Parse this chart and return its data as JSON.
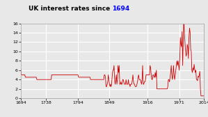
{
  "title": "UK interest rates since ",
  "title_suffix": "1694",
  "title_suffix_color": "#0000ff",
  "title_main_color": "#000000",
  "xlim": [
    1694,
    2014
  ],
  "ylim": [
    0,
    16
  ],
  "yticks": [
    0,
    2,
    4,
    6,
    8,
    10,
    12,
    14,
    16
  ],
  "xticks": [
    1694,
    1738,
    1794,
    1849,
    1916,
    1971,
    2014
  ],
  "line_color": "#cc0000",
  "background_color": "#e8e8e8",
  "grid_color": "#ffffff",
  "rates": [
    [
      1694,
      6.0
    ],
    [
      1695,
      5.0
    ],
    [
      1696,
      5.0
    ],
    [
      1697,
      5.0
    ],
    [
      1698,
      5.0
    ],
    [
      1699,
      5.0
    ],
    [
      1700,
      5.0
    ],
    [
      1701,
      5.0
    ],
    [
      1702,
      4.5
    ],
    [
      1703,
      4.5
    ],
    [
      1704,
      4.5
    ],
    [
      1705,
      4.5
    ],
    [
      1706,
      4.5
    ],
    [
      1707,
      4.5
    ],
    [
      1708,
      4.5
    ],
    [
      1709,
      4.5
    ],
    [
      1710,
      4.5
    ],
    [
      1711,
      4.5
    ],
    [
      1712,
      4.5
    ],
    [
      1713,
      4.5
    ],
    [
      1714,
      4.5
    ],
    [
      1715,
      4.5
    ],
    [
      1716,
      4.5
    ],
    [
      1717,
      4.5
    ],
    [
      1718,
      4.5
    ],
    [
      1719,
      4.5
    ],
    [
      1720,
      4.5
    ],
    [
      1721,
      4.5
    ],
    [
      1722,
      4.0
    ],
    [
      1723,
      4.0
    ],
    [
      1724,
      4.0
    ],
    [
      1725,
      4.0
    ],
    [
      1726,
      4.0
    ],
    [
      1727,
      4.0
    ],
    [
      1728,
      4.0
    ],
    [
      1729,
      4.0
    ],
    [
      1730,
      4.0
    ],
    [
      1731,
      4.0
    ],
    [
      1732,
      4.0
    ],
    [
      1733,
      4.0
    ],
    [
      1734,
      4.0
    ],
    [
      1735,
      4.0
    ],
    [
      1736,
      4.0
    ],
    [
      1737,
      4.0
    ],
    [
      1738,
      4.0
    ],
    [
      1739,
      4.0
    ],
    [
      1740,
      4.0
    ],
    [
      1741,
      4.0
    ],
    [
      1742,
      4.0
    ],
    [
      1743,
      4.0
    ],
    [
      1744,
      4.0
    ],
    [
      1745,
      4.0
    ],
    [
      1746,
      4.0
    ],
    [
      1747,
      4.0
    ],
    [
      1748,
      5.0
    ],
    [
      1749,
      5.0
    ],
    [
      1750,
      5.0
    ],
    [
      1751,
      5.0
    ],
    [
      1752,
      5.0
    ],
    [
      1753,
      5.0
    ],
    [
      1754,
      5.0
    ],
    [
      1755,
      5.0
    ],
    [
      1756,
      5.0
    ],
    [
      1757,
      5.0
    ],
    [
      1758,
      5.0
    ],
    [
      1759,
      5.0
    ],
    [
      1760,
      5.0
    ],
    [
      1761,
      5.0
    ],
    [
      1762,
      5.0
    ],
    [
      1763,
      5.0
    ],
    [
      1764,
      5.0
    ],
    [
      1765,
      5.0
    ],
    [
      1766,
      5.0
    ],
    [
      1767,
      5.0
    ],
    [
      1768,
      5.0
    ],
    [
      1769,
      5.0
    ],
    [
      1770,
      5.0
    ],
    [
      1771,
      5.0
    ],
    [
      1772,
      5.0
    ],
    [
      1773,
      5.0
    ],
    [
      1774,
      5.0
    ],
    [
      1775,
      5.0
    ],
    [
      1776,
      5.0
    ],
    [
      1777,
      5.0
    ],
    [
      1778,
      5.0
    ],
    [
      1779,
      5.0
    ],
    [
      1780,
      5.0
    ],
    [
      1781,
      5.0
    ],
    [
      1782,
      5.0
    ],
    [
      1783,
      5.0
    ],
    [
      1784,
      5.0
    ],
    [
      1785,
      5.0
    ],
    [
      1786,
      5.0
    ],
    [
      1787,
      5.0
    ],
    [
      1788,
      5.0
    ],
    [
      1789,
      5.0
    ],
    [
      1790,
      5.0
    ],
    [
      1791,
      5.0
    ],
    [
      1792,
      5.0
    ],
    [
      1793,
      5.0
    ],
    [
      1794,
      5.0
    ],
    [
      1795,
      4.5
    ],
    [
      1796,
      4.5
    ],
    [
      1797,
      4.5
    ],
    [
      1798,
      4.5
    ],
    [
      1799,
      4.5
    ],
    [
      1800,
      4.5
    ],
    [
      1801,
      4.5
    ],
    [
      1802,
      4.5
    ],
    [
      1803,
      4.5
    ],
    [
      1804,
      4.5
    ],
    [
      1805,
      4.5
    ],
    [
      1806,
      4.5
    ],
    [
      1807,
      4.5
    ],
    [
      1808,
      4.5
    ],
    [
      1809,
      4.5
    ],
    [
      1810,
      4.5
    ],
    [
      1811,
      4.5
    ],
    [
      1812,
      4.5
    ],
    [
      1813,
      4.5
    ],
    [
      1814,
      4.5
    ],
    [
      1815,
      4.5
    ],
    [
      1816,
      4.0
    ],
    [
      1817,
      4.0
    ],
    [
      1818,
      4.0
    ],
    [
      1819,
      4.0
    ],
    [
      1820,
      4.0
    ],
    [
      1821,
      4.0
    ],
    [
      1822,
      4.0
    ],
    [
      1823,
      4.0
    ],
    [
      1824,
      4.0
    ],
    [
      1825,
      4.0
    ],
    [
      1826,
      4.0
    ],
    [
      1827,
      4.0
    ],
    [
      1828,
      4.0
    ],
    [
      1829,
      4.0
    ],
    [
      1830,
      4.0
    ],
    [
      1831,
      4.0
    ],
    [
      1832,
      4.0
    ],
    [
      1833,
      4.0
    ],
    [
      1834,
      4.0
    ],
    [
      1835,
      4.0
    ],
    [
      1836,
      4.0
    ],
    [
      1837,
      4.0
    ],
    [
      1838,
      4.0
    ],
    [
      1839,
      4.0
    ],
    [
      1840,
      5.0
    ],
    [
      1841,
      5.0
    ],
    [
      1842,
      4.5
    ],
    [
      1843,
      2.5
    ],
    [
      1844,
      2.5
    ],
    [
      1845,
      3.0
    ],
    [
      1846,
      3.5
    ],
    [
      1847,
      5.0
    ],
    [
      1848,
      4.0
    ],
    [
      1849,
      3.0
    ],
    [
      1850,
      2.5
    ],
    [
      1851,
      3.0
    ],
    [
      1852,
      2.5
    ],
    [
      1853,
      3.5
    ],
    [
      1854,
      5.0
    ],
    [
      1855,
      6.0
    ],
    [
      1856,
      6.0
    ],
    [
      1857,
      7.0
    ],
    [
      1858,
      4.0
    ],
    [
      1859,
      3.0
    ],
    [
      1860,
      4.0
    ],
    [
      1861,
      5.0
    ],
    [
      1862,
      3.0
    ],
    [
      1863,
      4.0
    ],
    [
      1864,
      7.0
    ],
    [
      1865,
      5.5
    ],
    [
      1866,
      7.0
    ],
    [
      1867,
      3.0
    ],
    [
      1868,
      3.0
    ],
    [
      1869,
      3.5
    ],
    [
      1870,
      3.0
    ],
    [
      1871,
      3.0
    ],
    [
      1872,
      4.0
    ],
    [
      1873,
      4.0
    ],
    [
      1874,
      3.5
    ],
    [
      1875,
      3.0
    ],
    [
      1876,
      3.0
    ],
    [
      1877,
      3.0
    ],
    [
      1878,
      4.0
    ],
    [
      1879,
      3.0
    ],
    [
      1880,
      3.0
    ],
    [
      1881,
      3.0
    ],
    [
      1882,
      4.0
    ],
    [
      1883,
      3.0
    ],
    [
      1884,
      3.0
    ],
    [
      1885,
      2.5
    ],
    [
      1886,
      3.0
    ],
    [
      1887,
      3.0
    ],
    [
      1888,
      3.0
    ],
    [
      1889,
      4.0
    ],
    [
      1890,
      5.0
    ],
    [
      1891,
      3.5
    ],
    [
      1892,
      3.0
    ],
    [
      1893,
      3.0
    ],
    [
      1894,
      2.5
    ],
    [
      1895,
      2.5
    ],
    [
      1896,
      2.5
    ],
    [
      1897,
      3.0
    ],
    [
      1898,
      3.5
    ],
    [
      1899,
      4.5
    ],
    [
      1900,
      5.0
    ],
    [
      1901,
      4.0
    ],
    [
      1902,
      4.0
    ],
    [
      1903,
      4.0
    ],
    [
      1904,
      3.5
    ],
    [
      1905,
      3.0
    ],
    [
      1906,
      4.0
    ],
    [
      1907,
      7.0
    ],
    [
      1908,
      3.0
    ],
    [
      1909,
      3.0
    ],
    [
      1910,
      3.5
    ],
    [
      1911,
      3.5
    ],
    [
      1912,
      4.0
    ],
    [
      1913,
      5.0
    ],
    [
      1914,
      5.0
    ],
    [
      1915,
      5.0
    ],
    [
      1916,
      5.0
    ],
    [
      1917,
      5.0
    ],
    [
      1918,
      5.0
    ],
    [
      1919,
      5.0
    ],
    [
      1920,
      7.0
    ],
    [
      1921,
      6.5
    ],
    [
      1922,
      5.0
    ],
    [
      1923,
      4.0
    ],
    [
      1924,
      4.0
    ],
    [
      1925,
      5.0
    ],
    [
      1926,
      5.0
    ],
    [
      1927,
      4.5
    ],
    [
      1928,
      4.5
    ],
    [
      1929,
      5.5
    ],
    [
      1930,
      4.5
    ],
    [
      1931,
      6.0
    ],
    [
      1932,
      2.0
    ],
    [
      1933,
      2.0
    ],
    [
      1934,
      2.0
    ],
    [
      1935,
      2.0
    ],
    [
      1936,
      2.0
    ],
    [
      1937,
      2.0
    ],
    [
      1938,
      2.0
    ],
    [
      1939,
      2.0
    ],
    [
      1940,
      2.0
    ],
    [
      1941,
      2.0
    ],
    [
      1942,
      2.0
    ],
    [
      1943,
      2.0
    ],
    [
      1944,
      2.0
    ],
    [
      1945,
      2.0
    ],
    [
      1946,
      2.0
    ],
    [
      1947,
      2.0
    ],
    [
      1948,
      2.0
    ],
    [
      1949,
      2.0
    ],
    [
      1950,
      2.0
    ],
    [
      1951,
      2.5
    ],
    [
      1952,
      4.0
    ],
    [
      1953,
      4.0
    ],
    [
      1954,
      3.5
    ],
    [
      1955,
      4.5
    ],
    [
      1956,
      5.5
    ],
    [
      1957,
      7.0
    ],
    [
      1958,
      5.0
    ],
    [
      1959,
      4.0
    ],
    [
      1960,
      5.0
    ],
    [
      1961,
      7.0
    ],
    [
      1962,
      5.0
    ],
    [
      1963,
      4.0
    ],
    [
      1964,
      5.0
    ],
    [
      1965,
      6.0
    ],
    [
      1966,
      7.0
    ],
    [
      1967,
      8.0
    ],
    [
      1968,
      7.0
    ],
    [
      1969,
      8.0
    ],
    [
      1970,
      7.0
    ],
    [
      1971,
      6.0
    ],
    [
      1972,
      9.0
    ],
    [
      1973,
      13.0
    ],
    [
      1974,
      11.5
    ],
    [
      1975,
      11.0
    ],
    [
      1976,
      14.25
    ],
    [
      1977,
      7.0
    ],
    [
      1978,
      12.5
    ],
    [
      1979,
      17.0
    ],
    [
      1980,
      14.0
    ],
    [
      1981,
      12.0
    ],
    [
      1982,
      10.0
    ],
    [
      1983,
      9.0
    ],
    [
      1984,
      9.5
    ],
    [
      1985,
      11.5
    ],
    [
      1986,
      11.0
    ],
    [
      1987,
      8.5
    ],
    [
      1988,
      13.0
    ],
    [
      1989,
      15.0
    ],
    [
      1990,
      14.0
    ],
    [
      1991,
      10.5
    ],
    [
      1992,
      10.0
    ],
    [
      1993,
      6.0
    ],
    [
      1994,
      5.5
    ],
    [
      1995,
      6.5
    ],
    [
      1996,
      6.0
    ],
    [
      1997,
      7.25
    ],
    [
      1998,
      6.25
    ],
    [
      1999,
      5.5
    ],
    [
      2000,
      6.0
    ],
    [
      2001,
      4.0
    ],
    [
      2002,
      4.0
    ],
    [
      2003,
      3.75
    ],
    [
      2004,
      4.75
    ],
    [
      2005,
      4.5
    ],
    [
      2006,
      5.0
    ],
    [
      2007,
      5.75
    ],
    [
      2008,
      2.0
    ],
    [
      2009,
      0.5
    ],
    [
      2010,
      0.5
    ],
    [
      2011,
      0.5
    ],
    [
      2012,
      0.5
    ],
    [
      2013,
      0.5
    ],
    [
      2014,
      0.5
    ]
  ]
}
